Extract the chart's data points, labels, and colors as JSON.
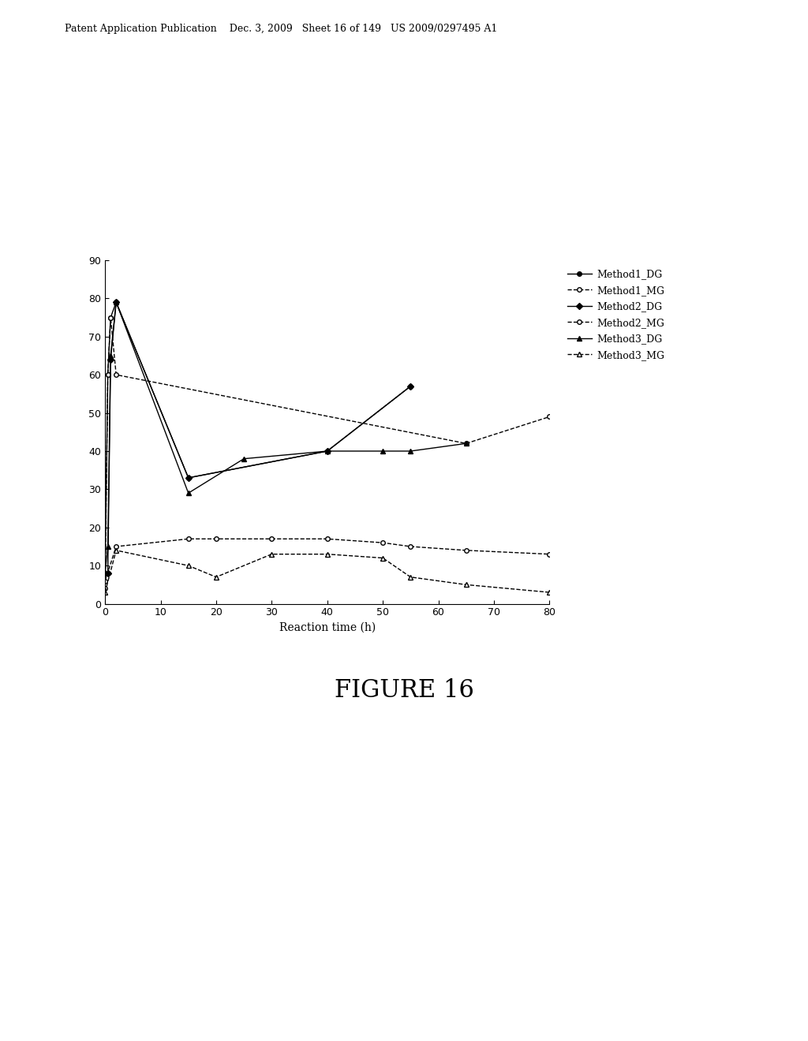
{
  "title_header": "Patent Application Publication    Dec. 3, 2009   Sheet 16 of 149   US 2009/0297495 A1",
  "figure_label": "FIGURE 16",
  "xlabel": "Reaction time (h)",
  "xlim": [
    0,
    80
  ],
  "ylim": [
    0,
    90
  ],
  "xticks": [
    0,
    10,
    20,
    30,
    40,
    50,
    60,
    70,
    80
  ],
  "yticks": [
    0,
    10,
    20,
    30,
    40,
    50,
    60,
    70,
    80,
    90
  ],
  "Method1_DG_x": [
    0,
    0.5,
    1,
    2,
    15,
    40,
    55
  ],
  "Method1_DG_y": [
    8,
    60,
    75,
    79,
    33,
    40,
    57
  ],
  "Method1_MG_x": [
    0,
    0.5,
    1,
    2,
    65,
    80
  ],
  "Method1_MG_y": [
    4,
    60,
    75,
    60,
    42,
    49
  ],
  "Method2_DG_x": [
    0,
    0.5,
    1,
    2,
    15,
    40,
    55
  ],
  "Method2_DG_y": [
    8,
    8,
    64,
    79,
    33,
    40,
    57
  ],
  "Method2_MG_x": [
    0,
    2,
    15,
    20,
    30,
    40,
    50,
    55,
    65,
    80
  ],
  "Method2_MG_y": [
    6,
    15,
    17,
    17,
    17,
    17,
    16,
    15,
    14,
    13
  ],
  "Method3_DG_x": [
    0,
    0.5,
    1,
    2,
    15,
    25,
    40,
    50,
    55,
    65
  ],
  "Method3_DG_y": [
    8,
    15,
    65,
    79,
    29,
    38,
    40,
    40,
    40,
    42
  ],
  "Method3_MG_x": [
    0,
    2,
    15,
    20,
    30,
    40,
    50,
    55,
    65,
    80
  ],
  "Method3_MG_y": [
    3,
    14,
    10,
    7,
    13,
    13,
    12,
    7,
    5,
    3
  ],
  "background_color": "#ffffff",
  "line_color": "#000000"
}
